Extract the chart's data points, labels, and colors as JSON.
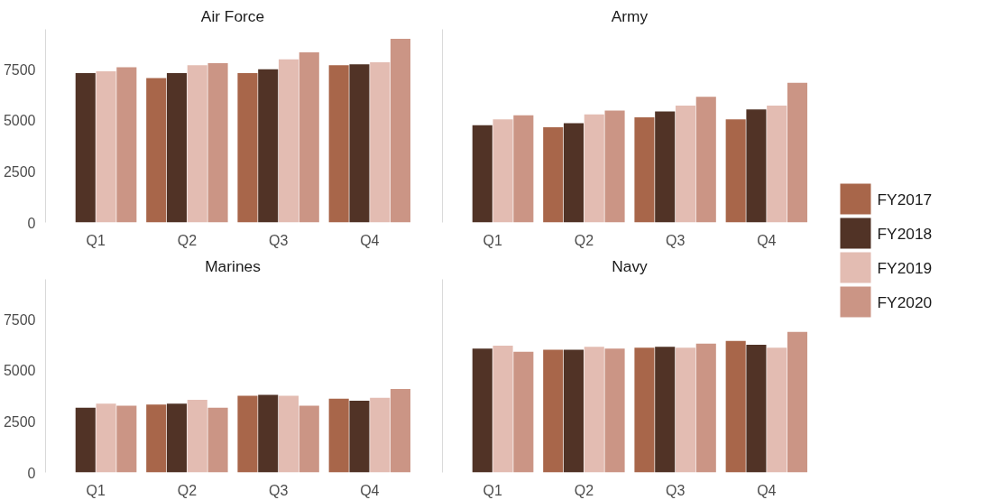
{
  "chart_data": [
    {
      "type": "bar",
      "title": "Air Force",
      "categories": [
        "Q1",
        "Q2",
        "Q3",
        "Q4"
      ],
      "ylim": [
        0,
        9450
      ],
      "yticks": [
        0,
        2500,
        5000,
        7500
      ],
      "grid": false,
      "series": [
        {
          "color": "#a8664a",
          "values": [
            null,
            7070,
            7310,
            7690
          ]
        },
        {
          "color": "#513326",
          "values": [
            7310,
            7310,
            7500,
            7740
          ]
        },
        {
          "color": "#e3bcb2",
          "values": [
            7400,
            7690,
            7980,
            7840
          ]
        },
        {
          "color": "#cb9585",
          "values": [
            7600,
            7790,
            8320,
            8990
          ]
        }
      ]
    },
    {
      "type": "bar",
      "title": "Army",
      "categories": [
        "Q1",
        "Q2",
        "Q3",
        "Q4"
      ],
      "ylim": [
        0,
        9450
      ],
      "yticks": [
        0,
        2500,
        5000,
        7500
      ],
      "tick_labels": "x",
      "grid": false,
      "legend": "right",
      "series": [
        {
          "name": "FY2017",
          "color": "#a8664a",
          "values": [
            null,
            4660,
            5140,
            5050
          ]
        },
        {
          "name": "FY2018",
          "color": "#513326",
          "values": [
            4760,
            4860,
            5430,
            5530
          ]
        },
        {
          "name": "FY2019",
          "color": "#e3bcb2",
          "values": [
            5050,
            5290,
            5720,
            5720
          ]
        },
        {
          "name": "FY2020",
          "color": "#cb9585",
          "values": [
            5240,
            5480,
            6150,
            6830
          ]
        }
      ]
    },
    {
      "type": "bar",
      "title": "Marines",
      "categories": [
        "Q1",
        "Q2",
        "Q3",
        "Q4"
      ],
      "ylim": [
        0,
        9450
      ],
      "yticks": [
        0,
        2500,
        5000,
        7500
      ],
      "grid": false,
      "series": [
        {
          "color": "#a8664a",
          "values": [
            null,
            3320,
            3750,
            3610
          ]
        },
        {
          "color": "#513326",
          "values": [
            3170,
            3370,
            3800,
            3510
          ]
        },
        {
          "color": "#e3bcb2",
          "values": [
            3370,
            3560,
            3750,
            3650
          ]
        },
        {
          "color": "#cb9585",
          "values": [
            3270,
            3170,
            3270,
            4090
          ]
        }
      ]
    },
    {
      "type": "bar",
      "title": "Navy",
      "categories": [
        "Q1",
        "Q2",
        "Q3",
        "Q4"
      ],
      "ylim": [
        0,
        9450
      ],
      "yticks": [
        0,
        2500,
        5000,
        7500
      ],
      "tick_labels": "x",
      "grid": false,
      "series": [
        {
          "color": "#a8664a",
          "values": [
            null,
            6010,
            6110,
            6440
          ]
        },
        {
          "color": "#513326",
          "values": [
            6060,
            6010,
            6150,
            6250
          ]
        },
        {
          "color": "#e3bcb2",
          "values": [
            6200,
            6150,
            6110,
            6110
          ]
        },
        {
          "color": "#cb9585",
          "values": [
            5910,
            6060,
            6300,
            6880
          ]
        }
      ]
    }
  ]
}
